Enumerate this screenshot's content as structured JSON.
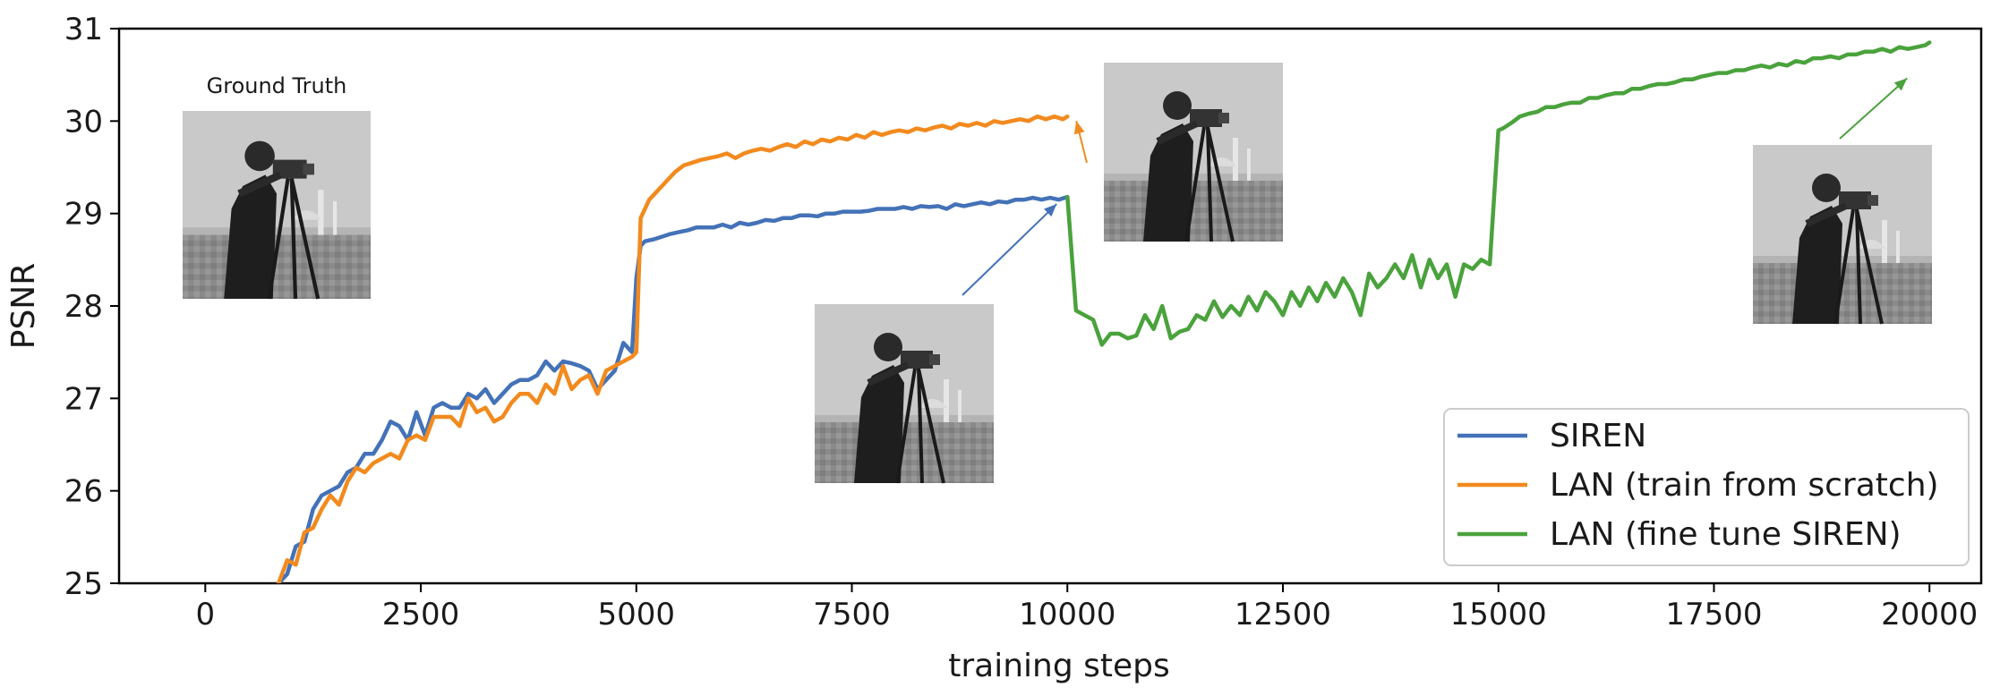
{
  "chart_data": {
    "type": "line",
    "title": "",
    "xlabel": "training steps",
    "ylabel": "PSNR",
    "xlim": [
      -1000,
      20600
    ],
    "ylim": [
      25,
      31
    ],
    "xticks": [
      0,
      2500,
      5000,
      7500,
      10000,
      12500,
      15000,
      17500,
      20000
    ],
    "yticks": [
      25,
      26,
      27,
      28,
      29,
      30,
      31
    ],
    "grid": false,
    "legend_position": "lower-right",
    "series": [
      {
        "name": "SIREN",
        "color": "#4472b8",
        "x": [
          850,
          950,
          1050,
          1150,
          1250,
          1350,
          1450,
          1550,
          1650,
          1750,
          1850,
          1950,
          2050,
          2150,
          2250,
          2350,
          2450,
          2550,
          2650,
          2750,
          2850,
          2950,
          3050,
          3150,
          3250,
          3350,
          3450,
          3550,
          3650,
          3750,
          3850,
          3950,
          4050,
          4150,
          4250,
          4350,
          4450,
          4550,
          4650,
          4750,
          4850,
          4950,
          5000,
          5050,
          5100,
          5200,
          5300,
          5400,
          5500,
          5600,
          5700,
          5800,
          5900,
          6000,
          6100,
          6200,
          6300,
          6400,
          6500,
          6600,
          6700,
          6800,
          6900,
          7000,
          7100,
          7200,
          7300,
          7400,
          7500,
          7600,
          7700,
          7800,
          7900,
          8000,
          8100,
          8200,
          8300,
          8400,
          8500,
          8600,
          8700,
          8800,
          8900,
          9000,
          9100,
          9200,
          9300,
          9400,
          9500,
          9600,
          9700,
          9800,
          9900,
          10000
        ],
        "y": [
          25.0,
          25.1,
          25.4,
          25.45,
          25.8,
          25.95,
          26.0,
          26.05,
          26.2,
          26.25,
          26.4,
          26.4,
          26.55,
          26.75,
          26.7,
          26.55,
          26.85,
          26.6,
          26.9,
          26.95,
          26.9,
          26.9,
          27.05,
          27.0,
          27.1,
          26.95,
          27.05,
          27.15,
          27.2,
          27.2,
          27.25,
          27.4,
          27.3,
          27.4,
          27.38,
          27.35,
          27.3,
          27.1,
          27.2,
          27.3,
          27.6,
          27.5,
          28.3,
          28.65,
          28.7,
          28.72,
          28.75,
          28.78,
          28.8,
          28.82,
          28.85,
          28.85,
          28.85,
          28.88,
          28.85,
          28.9,
          28.88,
          28.9,
          28.93,
          28.92,
          28.95,
          28.95,
          28.98,
          28.98,
          28.97,
          29.0,
          29.0,
          29.02,
          29.02,
          29.02,
          29.03,
          29.05,
          29.05,
          29.05,
          29.07,
          29.05,
          29.08,
          29.07,
          29.08,
          29.05,
          29.1,
          29.08,
          29.1,
          29.12,
          29.1,
          29.13,
          29.12,
          29.15,
          29.15,
          29.17,
          29.15,
          29.17,
          29.15,
          29.18
        ]
      },
      {
        "name": "LAN (train from scratch)",
        "color": "#f28a1e",
        "x": [
          850,
          950,
          1050,
          1150,
          1250,
          1350,
          1450,
          1550,
          1650,
          1750,
          1850,
          1950,
          2050,
          2150,
          2250,
          2350,
          2450,
          2550,
          2650,
          2750,
          2850,
          2950,
          3050,
          3150,
          3250,
          3350,
          3450,
          3550,
          3650,
          3750,
          3850,
          3950,
          4050,
          4150,
          4250,
          4350,
          4450,
          4550,
          4650,
          4750,
          4850,
          4950,
          5000,
          5050,
          5150,
          5250,
          5350,
          5450,
          5550,
          5650,
          5750,
          5850,
          5950,
          6050,
          6150,
          6250,
          6350,
          6450,
          6550,
          6650,
          6750,
          6850,
          6950,
          7050,
          7150,
          7250,
          7350,
          7450,
          7550,
          7650,
          7750,
          7850,
          7950,
          8050,
          8150,
          8250,
          8350,
          8450,
          8550,
          8650,
          8750,
          8850,
          8950,
          9050,
          9150,
          9250,
          9350,
          9450,
          9550,
          9650,
          9750,
          9850,
          9950,
          10000
        ],
        "y": [
          25.0,
          25.25,
          25.2,
          25.55,
          25.6,
          25.8,
          25.95,
          25.85,
          26.1,
          26.25,
          26.2,
          26.3,
          26.35,
          26.4,
          26.35,
          26.55,
          26.6,
          26.55,
          26.8,
          26.8,
          26.8,
          26.7,
          27.0,
          26.85,
          26.9,
          26.75,
          26.8,
          26.95,
          27.05,
          27.05,
          26.95,
          27.15,
          27.05,
          27.35,
          27.1,
          27.2,
          27.25,
          27.05,
          27.3,
          27.35,
          27.4,
          27.45,
          27.5,
          28.95,
          29.15,
          29.25,
          29.35,
          29.45,
          29.52,
          29.55,
          29.58,
          29.6,
          29.62,
          29.65,
          29.6,
          29.65,
          29.68,
          29.7,
          29.68,
          29.72,
          29.75,
          29.72,
          29.78,
          29.75,
          29.8,
          29.78,
          29.82,
          29.8,
          29.85,
          29.82,
          29.88,
          29.85,
          29.88,
          29.9,
          29.88,
          29.92,
          29.9,
          29.93,
          29.95,
          29.92,
          29.97,
          29.95,
          29.98,
          29.95,
          30.0,
          29.98,
          30.0,
          30.02,
          30.0,
          30.05,
          30.02,
          30.05,
          30.02,
          30.05
        ]
      },
      {
        "name": "LAN (fine tune SIREN)",
        "color": "#4aa23c",
        "x": [
          10000,
          10100,
          10200,
          10300,
          10400,
          10500,
          10600,
          10700,
          10800,
          10900,
          11000,
          11100,
          11200,
          11300,
          11400,
          11500,
          11600,
          11700,
          11800,
          11900,
          12000,
          12100,
          12200,
          12300,
          12400,
          12500,
          12600,
          12700,
          12800,
          12900,
          13000,
          13100,
          13200,
          13300,
          13400,
          13500,
          13600,
          13700,
          13800,
          13900,
          14000,
          14100,
          14200,
          14300,
          14400,
          14500,
          14600,
          14700,
          14800,
          14900,
          15000,
          15050,
          15150,
          15250,
          15350,
          15450,
          15550,
          15650,
          15750,
          15850,
          15950,
          16050,
          16150,
          16250,
          16350,
          16450,
          16550,
          16650,
          16750,
          16850,
          16950,
          17050,
          17150,
          17250,
          17350,
          17450,
          17550,
          17650,
          17750,
          17850,
          17950,
          18050,
          18150,
          18250,
          18350,
          18450,
          18550,
          18650,
          18750,
          18850,
          18950,
          19050,
          19150,
          19250,
          19350,
          19450,
          19550,
          19650,
          19750,
          19850,
          19950,
          20000
        ],
        "y": [
          29.18,
          27.95,
          27.9,
          27.85,
          27.58,
          27.7,
          27.7,
          27.65,
          27.68,
          27.9,
          27.75,
          28.0,
          27.65,
          27.72,
          27.75,
          27.9,
          27.85,
          28.05,
          27.88,
          28.0,
          27.9,
          28.1,
          27.95,
          28.15,
          28.05,
          27.9,
          28.15,
          28.0,
          28.2,
          28.05,
          28.25,
          28.1,
          28.3,
          28.15,
          27.9,
          28.35,
          28.2,
          28.3,
          28.45,
          28.3,
          28.55,
          28.2,
          28.5,
          28.3,
          28.45,
          28.1,
          28.45,
          28.4,
          28.5,
          28.45,
          29.9,
          29.92,
          29.98,
          30.05,
          30.08,
          30.1,
          30.15,
          30.15,
          30.18,
          30.2,
          30.2,
          30.25,
          30.25,
          30.28,
          30.3,
          30.3,
          30.35,
          30.35,
          30.38,
          30.4,
          30.4,
          30.42,
          30.45,
          30.45,
          30.48,
          30.5,
          30.52,
          30.52,
          30.55,
          30.55,
          30.58,
          30.6,
          30.58,
          30.62,
          30.6,
          30.65,
          30.63,
          30.68,
          30.68,
          30.7,
          30.68,
          30.72,
          30.72,
          30.75,
          30.75,
          30.78,
          30.75,
          30.8,
          30.78,
          30.8,
          30.82,
          30.85
        ]
      }
    ],
    "annotations": [
      {
        "text": "Ground Truth"
      }
    ]
  }
}
